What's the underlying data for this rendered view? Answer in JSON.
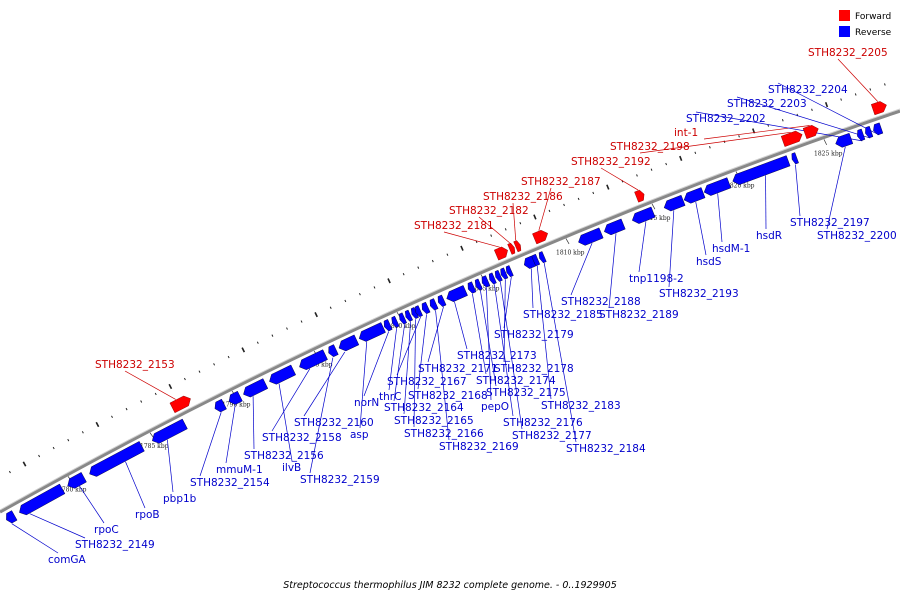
{
  "caption": "Streptococcus thermophilus JIM 8232 complete genome. - 0..1929905",
  "legend": [
    {
      "label": "Forward",
      "color": "#ff0000"
    },
    {
      "label": "Reverse",
      "color": "#0000ff"
    }
  ],
  "colors": {
    "forward": "#ff0000",
    "reverse": "#0000ff",
    "backbone": "#888888",
    "fwd_label": "#cc0000",
    "rev_label": "#0000cc"
  },
  "kbp_ticks": [
    "1780 kbp",
    "1785 kbp",
    "1790 kbp",
    "1795 kbp",
    "1800 kbp",
    "1805 kbp",
    "1810 kbp",
    "1815 kbp",
    "1820 kbp",
    "1825 kbp"
  ],
  "genes": [
    {
      "label": "comGA",
      "strand": "rev"
    },
    {
      "label": "STH8232_2149",
      "strand": "rev"
    },
    {
      "label": "rpoC",
      "strand": "rev"
    },
    {
      "label": "rpoB",
      "strand": "rev"
    },
    {
      "label": "pbp1b",
      "strand": "rev"
    },
    {
      "label": "STH8232_2153",
      "strand": "fwd"
    },
    {
      "label": "STH8232_2154",
      "strand": "rev"
    },
    {
      "label": "mmuM-1",
      "strand": "rev"
    },
    {
      "label": "STH8232_2156",
      "strand": "rev"
    },
    {
      "label": "ilvB",
      "strand": "rev"
    },
    {
      "label": "STH8232_2158",
      "strand": "rev"
    },
    {
      "label": "STH8232_2159",
      "strand": "rev"
    },
    {
      "label": "STH8232_2160",
      "strand": "rev"
    },
    {
      "label": "asp",
      "strand": "rev"
    },
    {
      "label": "norN",
      "strand": "rev"
    },
    {
      "label": "thrC",
      "strand": "rev"
    },
    {
      "label": "STH8232_2164",
      "strand": "rev"
    },
    {
      "label": "STH8232_2165",
      "strand": "rev"
    },
    {
      "label": "STH8232_2166",
      "strand": "rev"
    },
    {
      "label": "STH8232_2167",
      "strand": "rev"
    },
    {
      "label": "STH8232_2168",
      "strand": "rev"
    },
    {
      "label": "STH8232_2169",
      "strand": "rev"
    },
    {
      "label": "STH8232_2171",
      "strand": "rev"
    },
    {
      "label": "STH8232_2173",
      "strand": "rev"
    },
    {
      "label": "STH8232_2174",
      "strand": "rev"
    },
    {
      "label": "STH8232_2175",
      "strand": "rev"
    },
    {
      "label": "pepO",
      "strand": "rev"
    },
    {
      "label": "STH8232_2176",
      "strand": "rev"
    },
    {
      "label": "STH8232_2177",
      "strand": "rev"
    },
    {
      "label": "STH8232_2178",
      "strand": "rev"
    },
    {
      "label": "STH8232_2179",
      "strand": "rev"
    },
    {
      "label": "STH8232_2181",
      "strand": "fwd"
    },
    {
      "label": "STH8232_2182",
      "strand": "fwd"
    },
    {
      "label": "STH8232_2183",
      "strand": "rev"
    },
    {
      "label": "STH8232_2184",
      "strand": "rev"
    },
    {
      "label": "STH8232_2185",
      "strand": "rev"
    },
    {
      "label": "STH8232_2186",
      "strand": "fwd"
    },
    {
      "label": "STH8232_2187",
      "strand": "fwd"
    },
    {
      "label": "STH8232_2188",
      "strand": "rev"
    },
    {
      "label": "STH8232_2189",
      "strand": "rev"
    },
    {
      "label": "STH8232_2192",
      "strand": "fwd"
    },
    {
      "label": "tnp1198-2",
      "strand": "rev"
    },
    {
      "label": "STH8232_2193",
      "strand": "rev"
    },
    {
      "label": "hsdS",
      "strand": "rev"
    },
    {
      "label": "hsdM-1",
      "strand": "rev"
    },
    {
      "label": "hsdR",
      "strand": "rev"
    },
    {
      "label": "STH8232_2197",
      "strand": "rev"
    },
    {
      "label": "STH8232_2198",
      "strand": "fwd"
    },
    {
      "label": "int-1",
      "strand": "fwd"
    },
    {
      "label": "STH8232_2200",
      "strand": "rev"
    },
    {
      "label": "STH8232_2202",
      "strand": "rev"
    },
    {
      "label": "STH8232_2203",
      "strand": "rev"
    },
    {
      "label": "STH8232_2204",
      "strand": "rev"
    },
    {
      "label": "STH8232_2205",
      "strand": "fwd"
    }
  ]
}
